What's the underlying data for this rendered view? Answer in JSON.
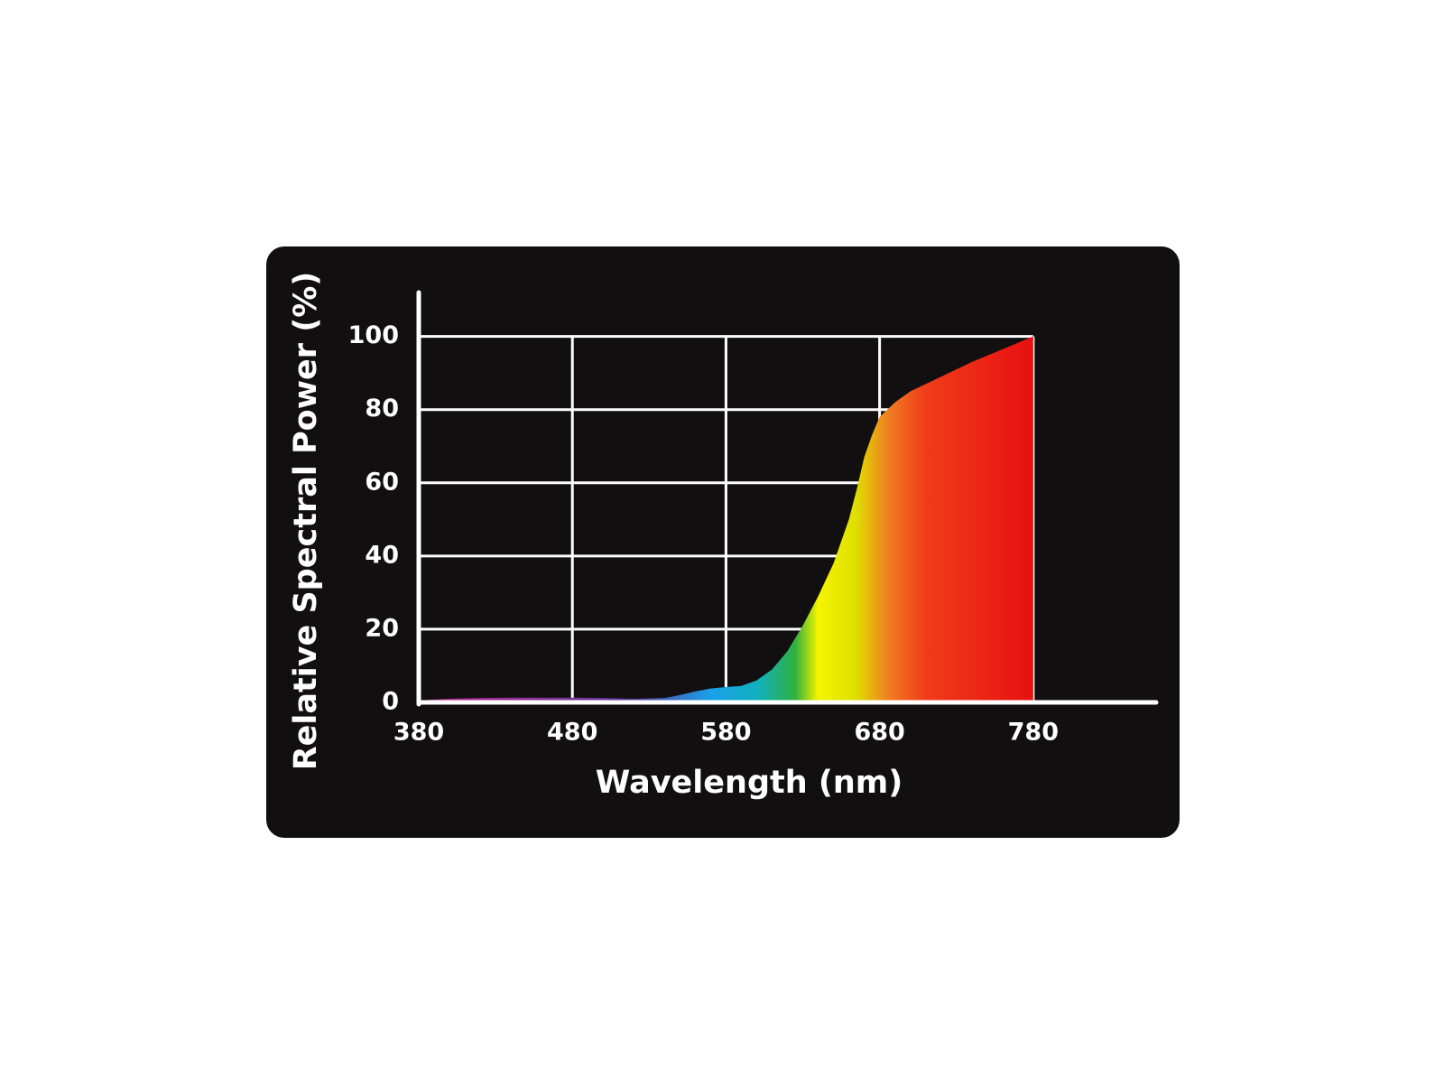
{
  "chart_data": {
    "type": "area",
    "x_label": "Wavelength (nm)",
    "y_label": "Relative Spectral Power (%)",
    "x": [
      380,
      390,
      400,
      420,
      440,
      460,
      480,
      500,
      520,
      540,
      550,
      560,
      570,
      580,
      590,
      600,
      610,
      620,
      630,
      640,
      650,
      660,
      665,
      670,
      675,
      680,
      690,
      700,
      720,
      740,
      760,
      780
    ],
    "values": [
      0.5,
      0.8,
      1,
      1.2,
      1.3,
      1.3,
      1.3,
      1.2,
      1,
      1.2,
      2,
      3,
      3.8,
      4.2,
      4.5,
      6,
      9,
      14,
      21,
      29,
      38,
      50,
      58,
      67,
      73,
      78,
      82,
      85,
      89,
      93,
      96.5,
      100
    ],
    "xlim": [
      380,
      860
    ],
    "xticks": [
      380,
      480,
      580,
      680,
      780
    ],
    "ylim": [
      0,
      112
    ],
    "yticks": [
      0,
      20,
      40,
      60,
      80,
      100
    ],
    "grid": true
  }
}
